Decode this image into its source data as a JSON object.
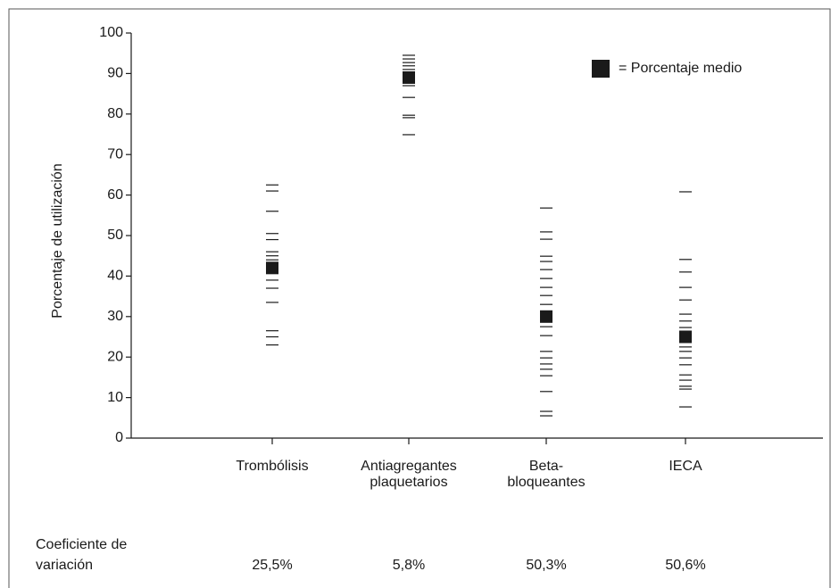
{
  "chart_data": {
    "type": "strip",
    "y_label": "Porcentaje de utilización",
    "ylim": [
      0,
      100
    ],
    "yticks": [
      0,
      10,
      20,
      30,
      40,
      50,
      60,
      70,
      80,
      90,
      100
    ],
    "categories": [
      [
        "Trombólisis"
      ],
      [
        "Antiagregantes",
        "plaquetarios"
      ],
      [
        "Beta-",
        "bloqueantes"
      ],
      [
        "IECA"
      ]
    ],
    "points": [
      [
        62.5,
        61,
        56,
        50.5,
        49,
        46,
        45,
        44,
        43,
        41,
        39,
        37,
        33.5,
        26.5,
        25,
        23
      ],
      [
        94.5,
        93.6,
        92.7,
        91.9,
        91,
        90.1,
        89.2,
        88.4,
        87,
        84.1,
        79.7,
        79.1,
        74.9
      ],
      [
        56.8,
        50.9,
        49.1,
        44.9,
        43.6,
        41.6,
        39.4,
        37.2,
        35.2,
        33,
        31.1,
        29.5,
        27.5,
        25.3,
        21.4,
        19.8,
        18.3,
        17,
        15.4,
        11.5,
        6.6,
        5.5
      ],
      [
        60.8,
        44.1,
        41,
        37.2,
        34.1,
        30.6,
        28.9,
        27.3,
        25.6,
        23.6,
        22.5,
        21.4,
        19.8,
        18.1,
        15.6,
        14.3,
        12.8,
        12.1,
        7.7
      ]
    ],
    "means": [
      42,
      89,
      30,
      25
    ],
    "legend": "= Porcentaje medio",
    "color": "#1a1a1a",
    "coefficients": {
      "label": [
        "Coeficiente de",
        "variación"
      ],
      "values": [
        25.5,
        5.8,
        50.3,
        50.6
      ],
      "value_labels": [
        "25,5%",
        "5,8%",
        "50,3%",
        "50,6%"
      ]
    }
  }
}
